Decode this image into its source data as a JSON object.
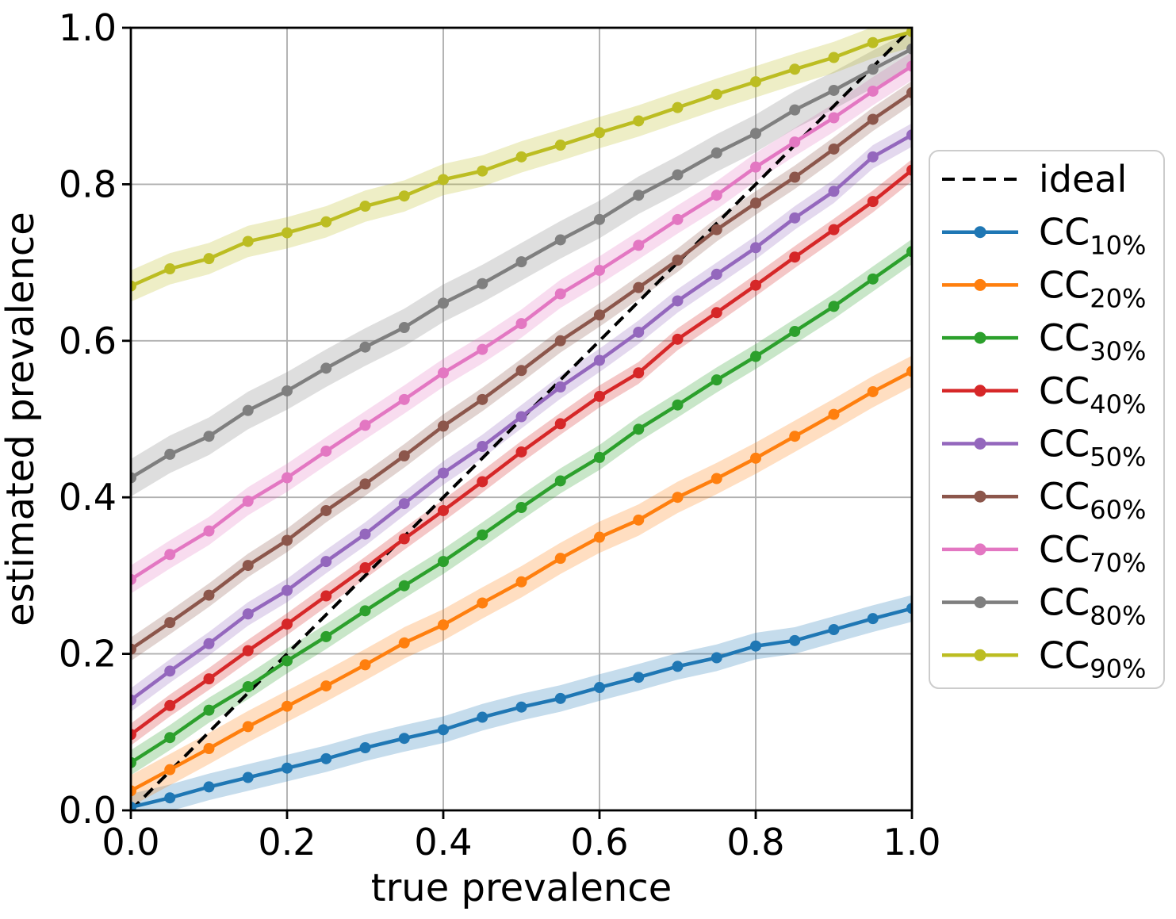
{
  "chart_data": {
    "type": "line",
    "title": "",
    "xlabel": "true prevalence",
    "ylabel": "estimated prevalence",
    "xlim": [
      0.0,
      1.0
    ],
    "ylim": [
      0.0,
      1.0
    ],
    "x_ticks": [
      0.0,
      0.2,
      0.4,
      0.6,
      0.8,
      1.0
    ],
    "y_ticks": [
      0.0,
      0.2,
      0.4,
      0.6,
      0.8,
      1.0
    ],
    "grid": true,
    "legend_position": "right outside",
    "x": [
      0.0,
      0.05,
      0.1,
      0.15,
      0.2,
      0.25,
      0.3,
      0.35,
      0.4,
      0.45,
      0.5,
      0.55,
      0.6,
      0.65,
      0.7,
      0.75,
      0.8,
      0.85,
      0.9,
      0.95,
      1.0
    ],
    "reference_line": {
      "label": "ideal",
      "style": "dashed",
      "color": "#000000",
      "x": [
        0.0,
        1.0
      ],
      "y": [
        0.0,
        1.0
      ]
    },
    "band_alpha": 0.26,
    "series": [
      {
        "name": "CC_10%",
        "label_base": "CC",
        "label_sub": "10%",
        "color": "#1f77b4",
        "band_halfwidth": 0.017,
        "values": [
          0.004,
          0.016,
          0.03,
          0.042,
          0.054,
          0.066,
          0.08,
          0.092,
          0.103,
          0.119,
          0.132,
          0.143,
          0.157,
          0.17,
          0.184,
          0.195,
          0.21,
          0.217,
          0.231,
          0.245,
          0.258
        ]
      },
      {
        "name": "CC_20%",
        "label_base": "CC",
        "label_sub": "20%",
        "color": "#ff7f0e",
        "band_halfwidth": 0.02,
        "values": [
          0.025,
          0.052,
          0.079,
          0.107,
          0.133,
          0.159,
          0.186,
          0.214,
          0.237,
          0.265,
          0.292,
          0.322,
          0.349,
          0.371,
          0.4,
          0.424,
          0.45,
          0.478,
          0.506,
          0.535,
          0.561
        ]
      },
      {
        "name": "CC_30%",
        "label_base": "CC",
        "label_sub": "30%",
        "color": "#2ca02c",
        "band_halfwidth": 0.016,
        "values": [
          0.061,
          0.093,
          0.128,
          0.158,
          0.191,
          0.222,
          0.255,
          0.287,
          0.318,
          0.352,
          0.387,
          0.421,
          0.451,
          0.487,
          0.518,
          0.55,
          0.58,
          0.612,
          0.644,
          0.679,
          0.714
        ]
      },
      {
        "name": "CC_40%",
        "label_base": "CC",
        "label_sub": "40%",
        "color": "#d62728",
        "band_halfwidth": 0.014,
        "values": [
          0.097,
          0.134,
          0.168,
          0.204,
          0.238,
          0.274,
          0.31,
          0.347,
          0.383,
          0.42,
          0.458,
          0.494,
          0.529,
          0.559,
          0.602,
          0.636,
          0.671,
          0.707,
          0.742,
          0.778,
          0.818
        ]
      },
      {
        "name": "CC_50%",
        "label_base": "CC",
        "label_sub": "50%",
        "color": "#9467bd",
        "band_halfwidth": 0.015,
        "values": [
          0.141,
          0.178,
          0.213,
          0.251,
          0.281,
          0.318,
          0.353,
          0.392,
          0.431,
          0.465,
          0.503,
          0.541,
          0.575,
          0.611,
          0.651,
          0.685,
          0.719,
          0.757,
          0.791,
          0.835,
          0.863
        ]
      },
      {
        "name": "CC_60%",
        "label_base": "CC",
        "label_sub": "60%",
        "color": "#8c564b",
        "band_halfwidth": 0.015,
        "values": [
          0.206,
          0.24,
          0.275,
          0.313,
          0.345,
          0.383,
          0.417,
          0.453,
          0.491,
          0.525,
          0.562,
          0.6,
          0.633,
          0.668,
          0.703,
          0.742,
          0.776,
          0.809,
          0.845,
          0.883,
          0.917
        ]
      },
      {
        "name": "CC_70%",
        "label_base": "CC",
        "label_sub": "70%",
        "color": "#e377c2",
        "band_halfwidth": 0.018,
        "values": [
          0.295,
          0.327,
          0.357,
          0.395,
          0.425,
          0.459,
          0.492,
          0.525,
          0.559,
          0.589,
          0.622,
          0.66,
          0.69,
          0.722,
          0.755,
          0.786,
          0.822,
          0.854,
          0.885,
          0.919,
          0.951
        ]
      },
      {
        "name": "CC_80%",
        "label_base": "CC",
        "label_sub": "80%",
        "color": "#7f7f7f",
        "band_halfwidth": 0.024,
        "values": [
          0.425,
          0.455,
          0.478,
          0.511,
          0.536,
          0.565,
          0.592,
          0.617,
          0.648,
          0.673,
          0.701,
          0.729,
          0.755,
          0.786,
          0.812,
          0.84,
          0.865,
          0.895,
          0.92,
          0.947,
          0.973
        ]
      },
      {
        "name": "CC_90%",
        "label_base": "CC",
        "label_sub": "90%",
        "color": "#bcbd22",
        "band_halfwidth": 0.02,
        "values": [
          0.67,
          0.692,
          0.705,
          0.727,
          0.738,
          0.752,
          0.772,
          0.785,
          0.806,
          0.817,
          0.835,
          0.85,
          0.866,
          0.881,
          0.898,
          0.915,
          0.931,
          0.947,
          0.962,
          0.981,
          0.995
        ]
      }
    ]
  },
  "style_colors": {
    "grid": "#b0b0b0",
    "spine": "#000000",
    "tick": "#000000",
    "legend_border": "#cccccc",
    "legend_background": "#ffffff",
    "background": "#ffffff"
  }
}
